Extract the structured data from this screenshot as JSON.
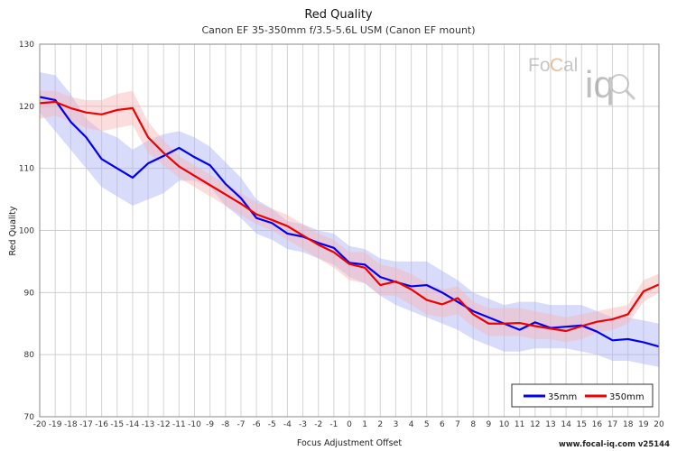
{
  "chart_data": {
    "type": "line",
    "title": "Red Quality",
    "subtitle": "Canon EF 35-350mm f/3.5-5.6L USM (Canon EF mount)",
    "xlabel": "Focus Adjustment Offset",
    "ylabel": "Red Quality",
    "xlim": [
      -20,
      20
    ],
    "ylim": [
      70,
      130
    ],
    "grid": true,
    "legend_position": "bottom-right",
    "x": [
      -20,
      -19,
      -18,
      -17,
      -16,
      -15,
      -14,
      -13,
      -12,
      -11,
      -10,
      -9,
      -8,
      -7,
      -6,
      -5,
      -4,
      -3,
      -2,
      -1,
      0,
      1,
      2,
      3,
      4,
      5,
      6,
      7,
      8,
      9,
      10,
      11,
      12,
      13,
      14,
      15,
      16,
      17,
      18,
      19,
      20
    ],
    "series": [
      {
        "name": "35mm",
        "color": "#0000ee",
        "band_color": "#aab0f5",
        "values": [
          121.5,
          121.0,
          117.5,
          115.0,
          111.5,
          110.0,
          108.5,
          110.8,
          112.0,
          113.3,
          111.8,
          110.5,
          107.5,
          105.2,
          102.0,
          101.2,
          99.5,
          99.0,
          98.0,
          97.2,
          94.8,
          94.5,
          92.5,
          91.7,
          91.0,
          91.2,
          90.0,
          88.5,
          87.0,
          86.0,
          85.0,
          84.0,
          85.2,
          84.3,
          84.5,
          84.7,
          83.7,
          82.3,
          82.5,
          82.0,
          81.3
        ],
        "band_low": [
          119.0,
          116.0,
          113.0,
          110.0,
          107.0,
          105.5,
          104.0,
          105.0,
          106.0,
          108.0,
          108.0,
          107.0,
          104.0,
          102.0,
          99.5,
          98.5,
          97.0,
          96.5,
          95.5,
          94.5,
          92.5,
          91.5,
          89.5,
          88.0,
          87.0,
          86.0,
          85.0,
          84.0,
          82.5,
          81.5,
          80.5,
          80.5,
          81.0,
          81.0,
          81.0,
          80.5,
          80.0,
          79.0,
          79.0,
          78.5,
          78.0
        ],
        "band_high": [
          125.5,
          125.0,
          122.0,
          118.0,
          116.0,
          115.0,
          113.0,
          114.5,
          115.5,
          116.0,
          115.0,
          113.5,
          111.0,
          108.5,
          105.0,
          103.5,
          101.5,
          101.0,
          100.0,
          99.5,
          97.5,
          97.0,
          95.5,
          95.0,
          95.0,
          95.0,
          93.5,
          92.0,
          90.0,
          89.0,
          88.0,
          88.5,
          88.5,
          88.0,
          88.0,
          88.0,
          87.0,
          86.0,
          86.0,
          85.5,
          85.0
        ]
      },
      {
        "name": "350mm",
        "color": "#ee0000",
        "band_color": "#f7b3b3",
        "values": [
          120.5,
          120.7,
          119.7,
          119.0,
          118.7,
          119.4,
          119.7,
          115.0,
          112.5,
          110.3,
          108.8,
          107.3,
          105.8,
          104.3,
          102.6,
          101.7,
          100.7,
          99.2,
          97.7,
          96.5,
          94.6,
          94.0,
          91.2,
          91.8,
          90.5,
          88.8,
          88.1,
          89.1,
          86.5,
          85.0,
          85.0,
          85.1,
          84.6,
          84.2,
          83.8,
          84.6,
          85.3,
          85.7,
          86.5,
          90.2,
          91.3
        ],
        "band_low": [
          118.0,
          118.5,
          117.5,
          116.5,
          116.0,
          116.5,
          117.0,
          112.5,
          110.5,
          108.5,
          107.0,
          105.5,
          104.0,
          102.5,
          101.0,
          100.0,
          98.5,
          97.0,
          95.5,
          94.0,
          92.0,
          91.5,
          89.5,
          89.5,
          88.0,
          86.5,
          86.0,
          86.5,
          84.5,
          83.0,
          83.0,
          83.0,
          82.5,
          82.5,
          82.0,
          82.5,
          83.5,
          84.0,
          85.0,
          88.5,
          90.0
        ],
        "band_high": [
          122.5,
          122.5,
          121.5,
          121.0,
          121.0,
          122.0,
          122.5,
          117.5,
          114.5,
          112.0,
          110.5,
          109.0,
          107.5,
          106.0,
          104.5,
          103.5,
          102.5,
          101.0,
          99.5,
          98.5,
          96.5,
          96.5,
          94.5,
          94.0,
          93.0,
          91.5,
          90.5,
          91.0,
          88.5,
          87.5,
          87.5,
          87.5,
          87.0,
          86.5,
          86.0,
          86.5,
          87.0,
          87.5,
          88.0,
          92.0,
          93.0
        ]
      }
    ]
  },
  "watermark": {
    "logo_text_left": "Fo",
    "logo_text_c": "C",
    "logo_text_right": "al",
    "logo_iq": "iq"
  },
  "credit": "www.focal-iq.com  v25144"
}
